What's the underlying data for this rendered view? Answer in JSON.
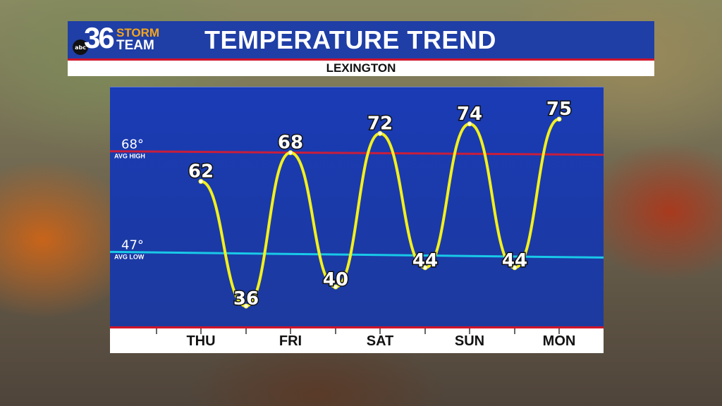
{
  "header": {
    "logo": {
      "network": "abc",
      "number": "36",
      "line1": "STORM",
      "line2": "TEAM"
    },
    "title": "TEMPERATURE TREND",
    "location": "LEXINGTON"
  },
  "colors": {
    "header_blue": "#1f3ea6",
    "accent_red": "#d0142a",
    "trend_line": "#f2f01c",
    "avg_high_line": "#c81e3c",
    "avg_low_line": "#19c9e8",
    "logo_orange": "#f4a51c"
  },
  "chart_data": {
    "type": "line",
    "title": "TEMPERATURE TREND",
    "subtitle": "LEXINGTON",
    "categories": [
      "THU",
      "FRI",
      "SAT",
      "SUN",
      "MON"
    ],
    "series": [
      {
        "points": [
          {
            "day": "THU",
            "period": "high",
            "value": 62
          },
          {
            "day": "FRI",
            "period": "low",
            "value": 36
          },
          {
            "day": "FRI",
            "period": "high",
            "value": 68
          },
          {
            "day": "SAT",
            "period": "low",
            "value": 40
          },
          {
            "day": "SAT",
            "period": "high",
            "value": 72
          },
          {
            "day": "SUN",
            "period": "low",
            "value": 44
          },
          {
            "day": "SUN",
            "period": "high",
            "value": 74
          },
          {
            "day": "MON",
            "period": "low",
            "value": 44
          },
          {
            "day": "MON",
            "period": "high",
            "value": 75
          }
        ]
      }
    ],
    "reference_lines": [
      {
        "value": 68,
        "label": "68°",
        "sublabel": "AVG HIGH",
        "color": "#c81e3c"
      },
      {
        "value": 47,
        "label": "47°",
        "sublabel": "AVG LOW",
        "color": "#19c9e8"
      }
    ],
    "ylim": [
      30,
      80
    ],
    "grid": false
  }
}
